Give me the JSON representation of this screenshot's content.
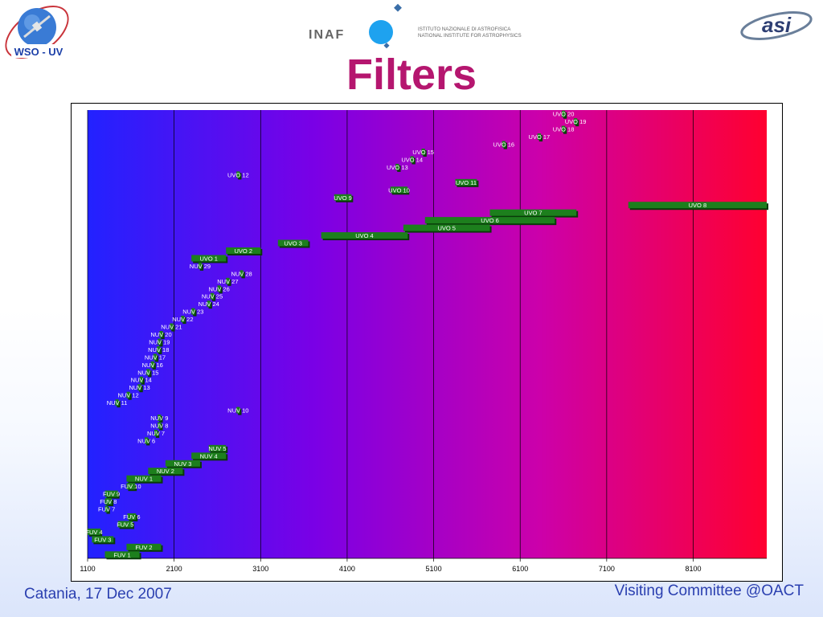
{
  "header": {
    "title": "Filters",
    "wso_logo_text": "WSO - UV",
    "inaf_logo_text": "INAF",
    "inaf_line1": "ISTITUTO NAZIONALE DI ASTROFISICA",
    "inaf_line2": "NATIONAL INSTITUTE FOR ASTROPHYSICS",
    "asi_logo_text": "asi"
  },
  "footer": {
    "left": "Catania, 17 Dec 2007",
    "right": "Visiting Committee @OACT"
  },
  "colors": {
    "title": "#b5166f",
    "footer": "#2a3fb0",
    "bar_fill": "#1d7f1d",
    "bar_shadow": "#0a3a0a",
    "gradient": [
      "#2222ff",
      "#7a00e6",
      "#cc00aa",
      "#ff0030"
    ]
  },
  "chart_data": {
    "type": "bar",
    "orientation": "horizontal-range",
    "x_ticks": [
      1100,
      2100,
      3100,
      4100,
      5100,
      6100,
      7100,
      8100
    ],
    "xlim": [
      1100,
      8950
    ],
    "grid": "vertical",
    "filters": [
      {
        "name": "UVO 20",
        "start": 6580,
        "end": 6620
      },
      {
        "name": "UVO 19",
        "start": 6720,
        "end": 6760
      },
      {
        "name": "UVO 18",
        "start": 6580,
        "end": 6620
      },
      {
        "name": "UVO 17",
        "start": 6300,
        "end": 6340
      },
      {
        "name": "UVO 16",
        "start": 5890,
        "end": 5930
      },
      {
        "name": "UVO 15",
        "start": 4960,
        "end": 5000
      },
      {
        "name": "UVO 14",
        "start": 4830,
        "end": 4870
      },
      {
        "name": "UVO 13",
        "start": 4660,
        "end": 4700
      },
      {
        "name": "UVO 12",
        "start": 2820,
        "end": 2860
      },
      {
        "name": "UVO 11",
        "start": 5350,
        "end": 5600
      },
      {
        "name": "UVO 10",
        "start": 4600,
        "end": 4800
      },
      {
        "name": "UVO 9",
        "start": 3950,
        "end": 4150
      },
      {
        "name": "UVO 8",
        "start": 7350,
        "end": 8950
      },
      {
        "name": "UVO 7",
        "start": 5750,
        "end": 6750
      },
      {
        "name": "UVO 6",
        "start": 5000,
        "end": 6500
      },
      {
        "name": "UVO 5",
        "start": 4750,
        "end": 5750
      },
      {
        "name": "UVO 4",
        "start": 3800,
        "end": 4800
      },
      {
        "name": "UVO 3",
        "start": 3300,
        "end": 3650
      },
      {
        "name": "UVO 2",
        "start": 2700,
        "end": 3100
      },
      {
        "name": "UVO 1",
        "start": 2300,
        "end": 2700
      },
      {
        "name": "NUV 29",
        "start": 2380,
        "end": 2420
      },
      {
        "name": "NUV 28",
        "start": 2860,
        "end": 2900
      },
      {
        "name": "NUV 27",
        "start": 2700,
        "end": 2740
      },
      {
        "name": "NUV 26",
        "start": 2600,
        "end": 2640
      },
      {
        "name": "NUV 25",
        "start": 2520,
        "end": 2560
      },
      {
        "name": "NUV 24",
        "start": 2480,
        "end": 2520
      },
      {
        "name": "NUV 23",
        "start": 2300,
        "end": 2340
      },
      {
        "name": "NUV 22",
        "start": 2180,
        "end": 2220
      },
      {
        "name": "NUV 21",
        "start": 2050,
        "end": 2090
      },
      {
        "name": "NUV 20",
        "start": 1930,
        "end": 1970
      },
      {
        "name": "NUV 19",
        "start": 1910,
        "end": 1950
      },
      {
        "name": "NUV 18",
        "start": 1900,
        "end": 1940
      },
      {
        "name": "NUV 17",
        "start": 1860,
        "end": 1900
      },
      {
        "name": "NUV 16",
        "start": 1830,
        "end": 1870
      },
      {
        "name": "NUV 15",
        "start": 1780,
        "end": 1820
      },
      {
        "name": "NUV 14",
        "start": 1700,
        "end": 1740
      },
      {
        "name": "NUV 13",
        "start": 1680,
        "end": 1720
      },
      {
        "name": "NUV 12",
        "start": 1550,
        "end": 1590
      },
      {
        "name": "NUV 11",
        "start": 1420,
        "end": 1460
      },
      {
        "name": "NUV 10",
        "start": 2820,
        "end": 2860
      },
      {
        "name": "NUV 9",
        "start": 1910,
        "end": 1950
      },
      {
        "name": "NUV 8",
        "start": 1910,
        "end": 1950
      },
      {
        "name": "NUV 7",
        "start": 1870,
        "end": 1910
      },
      {
        "name": "NUV 6",
        "start": 1760,
        "end": 1800
      },
      {
        "name": "NUV 5",
        "start": 2500,
        "end": 2700
      },
      {
        "name": "NUV 4",
        "start": 2300,
        "end": 2700
      },
      {
        "name": "NUV 3",
        "start": 2000,
        "end": 2400
      },
      {
        "name": "NUV 2",
        "start": 1800,
        "end": 2200
      },
      {
        "name": "NUV 1",
        "start": 1550,
        "end": 1950
      },
      {
        "name": "FUV 10",
        "start": 1550,
        "end": 1650
      },
      {
        "name": "FUV 9",
        "start": 1300,
        "end": 1450
      },
      {
        "name": "FUV 8",
        "start": 1300,
        "end": 1380
      },
      {
        "name": "FUV 7",
        "start": 1300,
        "end": 1340
      },
      {
        "name": "FUV 6",
        "start": 1560,
        "end": 1660
      },
      {
        "name": "FUV 5",
        "start": 1450,
        "end": 1620
      },
      {
        "name": "FUV 4",
        "start": 1100,
        "end": 1250
      },
      {
        "name": "FUV 3",
        "start": 1150,
        "end": 1400
      },
      {
        "name": "FUV 2",
        "start": 1550,
        "end": 1950
      },
      {
        "name": "FUV 1",
        "start": 1300,
        "end": 1700
      }
    ]
  }
}
